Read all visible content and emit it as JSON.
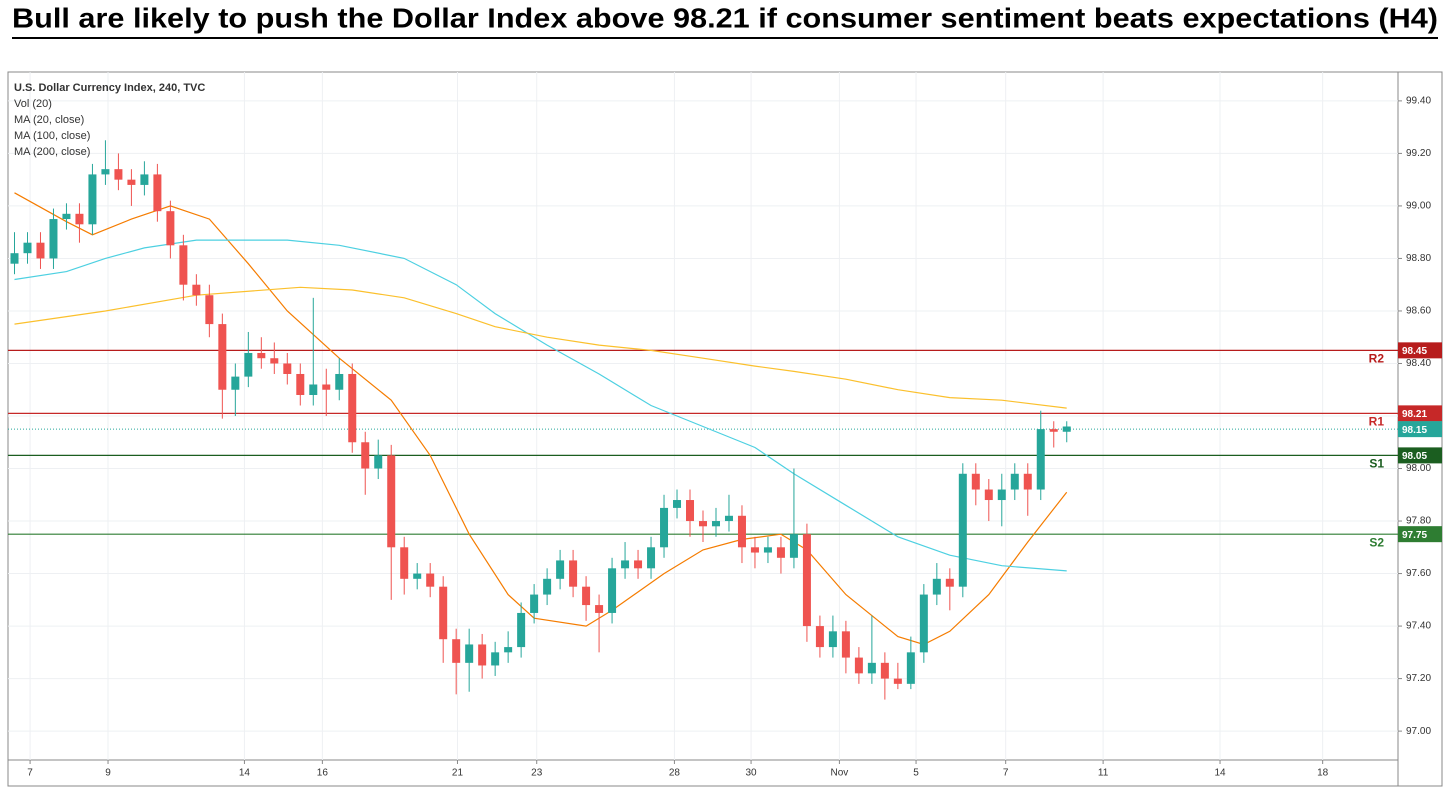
{
  "chart_data": {
    "type": "candlestick",
    "title": "Bull are likely to push the Dollar Index above 98.21 if consumer sentiment beats expectations (H4)",
    "symbol": "U.S. Dollar Currency Index, 240, TVC",
    "volume_label": "Vol (20)",
    "up_color": "#26a69a",
    "down_color": "#ef5350",
    "grid": true,
    "ylim": [
      96.89,
      99.51
    ],
    "yticks": [
      {
        "value": 97,
        "label": "97.00"
      },
      {
        "value": 97.2,
        "label": "97.20"
      },
      {
        "value": 97.4,
        "label": "97.40"
      },
      {
        "value": 97.6,
        "label": "97.60"
      },
      {
        "value": 97.8,
        "label": "97.80"
      },
      {
        "value": 98,
        "label": "98.00"
      },
      {
        "value": 98.2,
        "label": "98.20"
      },
      {
        "value": 98.4,
        "label": "98.40"
      },
      {
        "value": 98.6,
        "label": "98.60"
      },
      {
        "value": 98.8,
        "label": "98.80"
      },
      {
        "value": 99,
        "label": "99.00"
      },
      {
        "value": 99.2,
        "label": "99.20"
      },
      {
        "value": 99.4,
        "label": "99.40"
      }
    ],
    "xlim": [
      -0.5,
      106.5
    ],
    "xticks": [
      {
        "value": 1.2,
        "label": "7"
      },
      {
        "value": 7.2,
        "label": "9"
      },
      {
        "value": 17.7,
        "label": "14"
      },
      {
        "value": 23.7,
        "label": "16"
      },
      {
        "value": 34.1,
        "label": "21"
      },
      {
        "value": 40.2,
        "label": "23"
      },
      {
        "value": 50.8,
        "label": "28"
      },
      {
        "value": 56.7,
        "label": "30"
      },
      {
        "value": 63.5,
        "label": "Nov"
      },
      {
        "value": 69.4,
        "label": "5"
      },
      {
        "value": 76.3,
        "label": "7"
      },
      {
        "value": 83.8,
        "label": "11"
      },
      {
        "value": 92.8,
        "label": "14"
      },
      {
        "value": 100.7,
        "label": "18"
      }
    ],
    "ohlc": [
      [
        98.78,
        98.9,
        98.74,
        98.82
      ],
      [
        98.82,
        98.9,
        98.78,
        98.86
      ],
      [
        98.86,
        98.9,
        98.76,
        98.8
      ],
      [
        98.8,
        98.99,
        98.76,
        98.95
      ],
      [
        98.95,
        99.01,
        98.91,
        98.97
      ],
      [
        98.97,
        99.01,
        98.86,
        98.93
      ],
      [
        98.93,
        99.16,
        98.89,
        99.12
      ],
      [
        99.12,
        99.25,
        99.08,
        99.14
      ],
      [
        99.14,
        99.2,
        99.06,
        99.1
      ],
      [
        99.1,
        99.14,
        99.0,
        99.08
      ],
      [
        99.08,
        99.17,
        99.04,
        99.12
      ],
      [
        99.12,
        99.16,
        98.94,
        98.98
      ],
      [
        98.98,
        99.02,
        98.8,
        98.85
      ],
      [
        98.85,
        98.89,
        98.64,
        98.7
      ],
      [
        98.7,
        98.74,
        98.62,
        98.66
      ],
      [
        98.66,
        98.7,
        98.5,
        98.55
      ],
      [
        98.55,
        98.59,
        98.19,
        98.3
      ],
      [
        98.3,
        98.4,
        98.2,
        98.35
      ],
      [
        98.35,
        98.52,
        98.31,
        98.44
      ],
      [
        98.44,
        98.5,
        98.38,
        98.42
      ],
      [
        98.42,
        98.48,
        98.36,
        98.4
      ],
      [
        98.4,
        98.44,
        98.32,
        98.36
      ],
      [
        98.36,
        98.4,
        98.24,
        98.28
      ],
      [
        98.28,
        98.65,
        98.24,
        98.32
      ],
      [
        98.32,
        98.38,
        98.2,
        98.3
      ],
      [
        98.3,
        98.42,
        98.26,
        98.36
      ],
      [
        98.36,
        98.4,
        98.06,
        98.1
      ],
      [
        98.1,
        98.14,
        97.9,
        98.0
      ],
      [
        98.0,
        98.11,
        97.96,
        98.05
      ],
      [
        98.05,
        98.09,
        97.5,
        97.7
      ],
      [
        97.7,
        97.74,
        97.52,
        97.58
      ],
      [
        97.58,
        97.64,
        97.54,
        97.6
      ],
      [
        97.6,
        97.64,
        97.51,
        97.55
      ],
      [
        97.55,
        97.59,
        97.26,
        97.35
      ],
      [
        97.35,
        97.39,
        97.14,
        97.26
      ],
      [
        97.26,
        97.39,
        97.15,
        97.33
      ],
      [
        97.33,
        97.37,
        97.2,
        97.25
      ],
      [
        97.25,
        97.34,
        97.21,
        97.3
      ],
      [
        97.3,
        97.38,
        97.26,
        97.32
      ],
      [
        97.32,
        97.49,
        97.28,
        97.45
      ],
      [
        97.45,
        97.56,
        97.41,
        97.52
      ],
      [
        97.52,
        97.62,
        97.48,
        97.58
      ],
      [
        97.58,
        97.69,
        97.54,
        97.65
      ],
      [
        97.65,
        97.69,
        97.51,
        97.55
      ],
      [
        97.55,
        97.59,
        97.42,
        97.48
      ],
      [
        97.48,
        97.52,
        97.3,
        97.45
      ],
      [
        97.45,
        97.66,
        97.41,
        97.62
      ],
      [
        97.62,
        97.72,
        97.58,
        97.65
      ],
      [
        97.65,
        97.69,
        97.58,
        97.62
      ],
      [
        97.62,
        97.74,
        97.58,
        97.7
      ],
      [
        97.7,
        97.9,
        97.66,
        97.85
      ],
      [
        97.85,
        97.92,
        97.81,
        97.88
      ],
      [
        97.88,
        97.92,
        97.74,
        97.8
      ],
      [
        97.8,
        97.84,
        97.72,
        97.78
      ],
      [
        97.78,
        97.85,
        97.74,
        97.8
      ],
      [
        97.8,
        97.9,
        97.76,
        97.82
      ],
      [
        97.82,
        97.86,
        97.64,
        97.7
      ],
      [
        97.7,
        97.74,
        97.62,
        97.68
      ],
      [
        97.68,
        97.74,
        97.64,
        97.7
      ],
      [
        97.7,
        97.74,
        97.6,
        97.66
      ],
      [
        97.66,
        98.0,
        97.62,
        97.75
      ],
      [
        97.75,
        97.79,
        97.34,
        97.4
      ],
      [
        97.4,
        97.44,
        97.28,
        97.32
      ],
      [
        97.32,
        97.44,
        97.28,
        97.38
      ],
      [
        97.38,
        97.42,
        97.22,
        97.28
      ],
      [
        97.28,
        97.32,
        97.18,
        97.22
      ],
      [
        97.22,
        97.44,
        97.18,
        97.26
      ],
      [
        97.26,
        97.3,
        97.12,
        97.2
      ],
      [
        97.2,
        97.26,
        97.16,
        97.18
      ],
      [
        97.18,
        97.36,
        97.16,
        97.3
      ],
      [
        97.3,
        97.56,
        97.26,
        97.52
      ],
      [
        97.52,
        97.64,
        97.48,
        97.58
      ],
      [
        97.58,
        97.62,
        97.46,
        97.55
      ],
      [
        97.55,
        98.02,
        97.51,
        97.98
      ],
      [
        97.98,
        98.02,
        97.86,
        97.92
      ],
      [
        97.92,
        97.96,
        97.8,
        97.88
      ],
      [
        97.88,
        97.98,
        97.78,
        97.92
      ],
      [
        97.92,
        98.02,
        97.88,
        97.98
      ],
      [
        97.98,
        98.02,
        97.82,
        97.92
      ],
      [
        97.92,
        98.22,
        97.88,
        98.15
      ],
      [
        98.15,
        98.18,
        98.08,
        98.14
      ],
      [
        98.14,
        98.18,
        98.1,
        98.16
      ]
    ],
    "ma_series": [
      {
        "name": "MA (20, close)",
        "color": "#f57c00",
        "x": [
          0,
          4,
          6,
          9,
          12,
          15,
          18,
          21,
          25,
          29,
          32,
          35,
          38,
          40,
          44,
          46,
          50,
          53,
          56,
          59,
          61,
          64,
          68,
          70,
          72,
          75,
          78,
          81
        ],
        "values": [
          99.05,
          98.94,
          98.89,
          98.95,
          99.0,
          98.95,
          98.78,
          98.6,
          98.42,
          98.26,
          98.05,
          97.75,
          97.52,
          97.43,
          97.4,
          97.46,
          97.6,
          97.69,
          97.73,
          97.75,
          97.69,
          97.52,
          97.36,
          97.33,
          97.38,
          97.52,
          97.72,
          97.91
        ]
      },
      {
        "name": "MA (100, close)",
        "color": "#4dd0e1",
        "x": [
          0,
          4,
          7,
          10,
          14,
          21,
          25,
          30,
          34,
          37,
          41,
          45,
          49,
          53,
          57,
          60,
          64,
          68,
          72,
          76,
          81
        ],
        "values": [
          98.72,
          98.75,
          98.8,
          98.84,
          98.87,
          98.87,
          98.85,
          98.8,
          98.7,
          98.59,
          98.47,
          98.36,
          98.24,
          98.16,
          98.08,
          97.98,
          97.86,
          97.74,
          97.67,
          97.63,
          97.61
        ]
      },
      {
        "name": "MA (200, close)",
        "color": "#fbc02d",
        "x": [
          0,
          7,
          14,
          22,
          26,
          30,
          34,
          37,
          41,
          45,
          49,
          53,
          57,
          60,
          64,
          68,
          72,
          76,
          81
        ],
        "values": [
          98.55,
          98.6,
          98.66,
          98.69,
          98.68,
          98.65,
          98.59,
          98.54,
          98.5,
          98.47,
          98.45,
          98.42,
          98.39,
          98.37,
          98.34,
          98.3,
          98.27,
          98.26,
          98.23
        ]
      }
    ],
    "levels": [
      {
        "label": "R2",
        "value": 98.45,
        "color": "#b71c1c"
      },
      {
        "label": "R1",
        "value": 98.21,
        "color": "#c62828"
      },
      {
        "label": "S1",
        "value": 98.05,
        "color": "#1b5e20"
      },
      {
        "label": "S2",
        "value": 97.75,
        "color": "#2e7d32"
      }
    ],
    "price_line": {
      "value": 98.15,
      "color": "#26a69a"
    }
  }
}
